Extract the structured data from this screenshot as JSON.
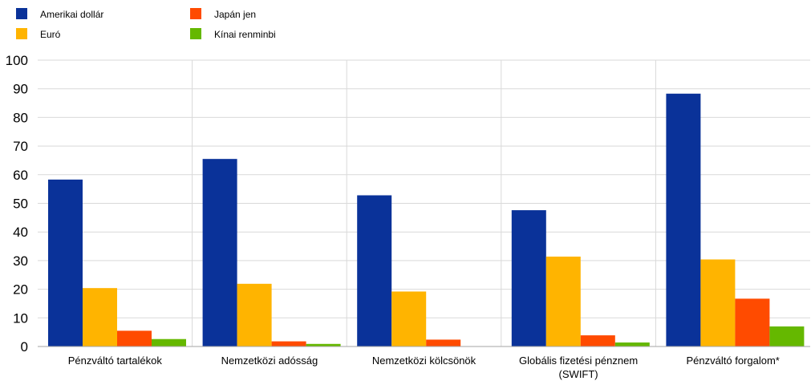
{
  "chart_data": {
    "type": "bar",
    "categories": [
      [
        "Pénzváltó tartalékok"
      ],
      [
        "Nemzetközi adósság"
      ],
      [
        "Nemzetközi kölcsönök"
      ],
      [
        "Globális fizetési pénznem",
        "(SWIFT)"
      ],
      [
        "Pénzváltó forgalom*"
      ]
    ],
    "series": [
      {
        "name": "Amerikai dollár",
        "color": "#0a3299",
        "values": [
          58.3,
          65.5,
          52.8,
          47.6,
          88.3
        ]
      },
      {
        "name": "Euró",
        "color": "#ffb400",
        "values": [
          20.4,
          21.9,
          19.2,
          31.4,
          30.4
        ]
      },
      {
        "name": "Japán jen",
        "color": "#ff4b00",
        "values": [
          5.5,
          1.8,
          2.4,
          3.9,
          16.7
        ]
      },
      {
        "name": "Kínai renminbi",
        "color": "#65b800",
        "values": [
          2.6,
          0.9,
          0.1,
          1.4,
          7.0
        ]
      }
    ],
    "yticks": [
      0,
      10,
      20,
      30,
      40,
      50,
      60,
      70,
      80,
      90,
      100
    ],
    "ylim": [
      0,
      100
    ],
    "grid": true,
    "legend_position": "top-left",
    "title": "",
    "xlabel": "",
    "ylabel": ""
  }
}
